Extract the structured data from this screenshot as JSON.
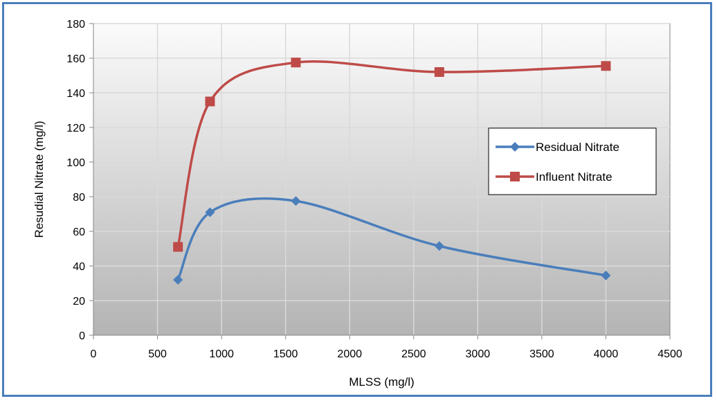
{
  "chart_data": {
    "type": "scatter",
    "title": "",
    "xlabel": "MLSS (mg/l)",
    "ylabel": "Resudial Nitrate (mg/l)",
    "xlim": [
      0,
      4500
    ],
    "ylim": [
      0,
      180
    ],
    "x_ticks": [
      "0",
      "500",
      "1000",
      "1500",
      "2000",
      "2500",
      "3000",
      "3500",
      "4000",
      "4500"
    ],
    "y_ticks": [
      "0",
      "20",
      "40",
      "60",
      "80",
      "100",
      "120",
      "140",
      "160",
      "180"
    ],
    "grid": true,
    "smooth_lines": true,
    "legend_position": "right-center",
    "series": [
      {
        "name": "Residual Nitrate",
        "color": "#4a7ebb",
        "marker": "diamond",
        "x": [
          660,
          910,
          1580,
          2700,
          4000
        ],
        "y": [
          32,
          71,
          77.5,
          51.5,
          34.5
        ]
      },
      {
        "name": "Influent Nitrate",
        "color": "#be4b48",
        "marker": "square",
        "x": [
          660,
          910,
          1580,
          2700,
          4000
        ],
        "y": [
          51,
          135,
          157.5,
          152,
          155.5
        ]
      }
    ]
  }
}
